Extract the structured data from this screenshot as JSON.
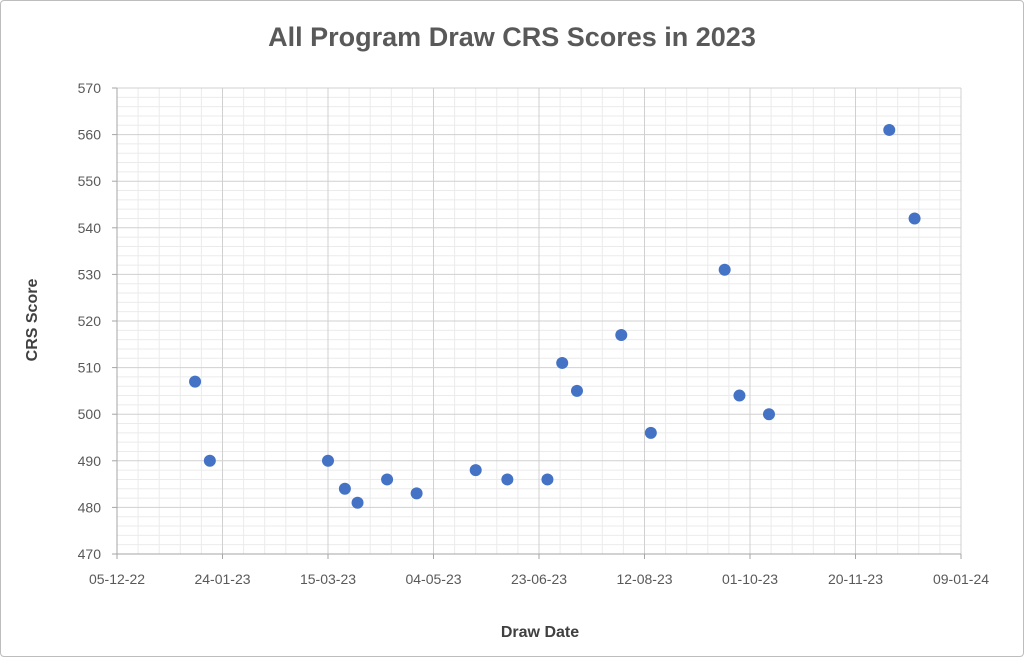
{
  "chart_data": {
    "type": "scatter",
    "title": "All Program Draw CRS Scores in 2023",
    "xlabel": "Draw Date",
    "ylabel": "CRS Score",
    "x_ticks": [
      "05-12-22",
      "24-01-23",
      "15-03-23",
      "04-05-23",
      "23-06-23",
      "12-08-23",
      "01-10-23",
      "20-11-23",
      "09-01-24"
    ],
    "y_ticks": [
      470,
      480,
      490,
      500,
      510,
      520,
      530,
      540,
      550,
      560,
      570
    ],
    "xlim": [
      "2022-12-05",
      "2024-01-09"
    ],
    "ylim": [
      470,
      570
    ],
    "grid": true,
    "marker_color": "#4472C4",
    "series": [
      {
        "x": [
          "2023-01-11",
          "2023-01-18",
          "2023-03-15",
          "2023-03-23",
          "2023-03-29",
          "2023-04-12",
          "2023-04-26",
          "2023-05-24",
          "2023-06-08",
          "2023-06-27",
          "2023-07-04",
          "2023-07-11",
          "2023-08-01",
          "2023-08-15",
          "2023-09-19",
          "2023-09-26",
          "2023-10-10",
          "2023-12-06",
          "2023-12-18"
        ],
        "y": [
          507,
          490,
          490,
          484,
          481,
          486,
          483,
          488,
          486,
          486,
          511,
          505,
          517,
          496,
          531,
          504,
          500,
          561,
          542
        ]
      }
    ]
  }
}
